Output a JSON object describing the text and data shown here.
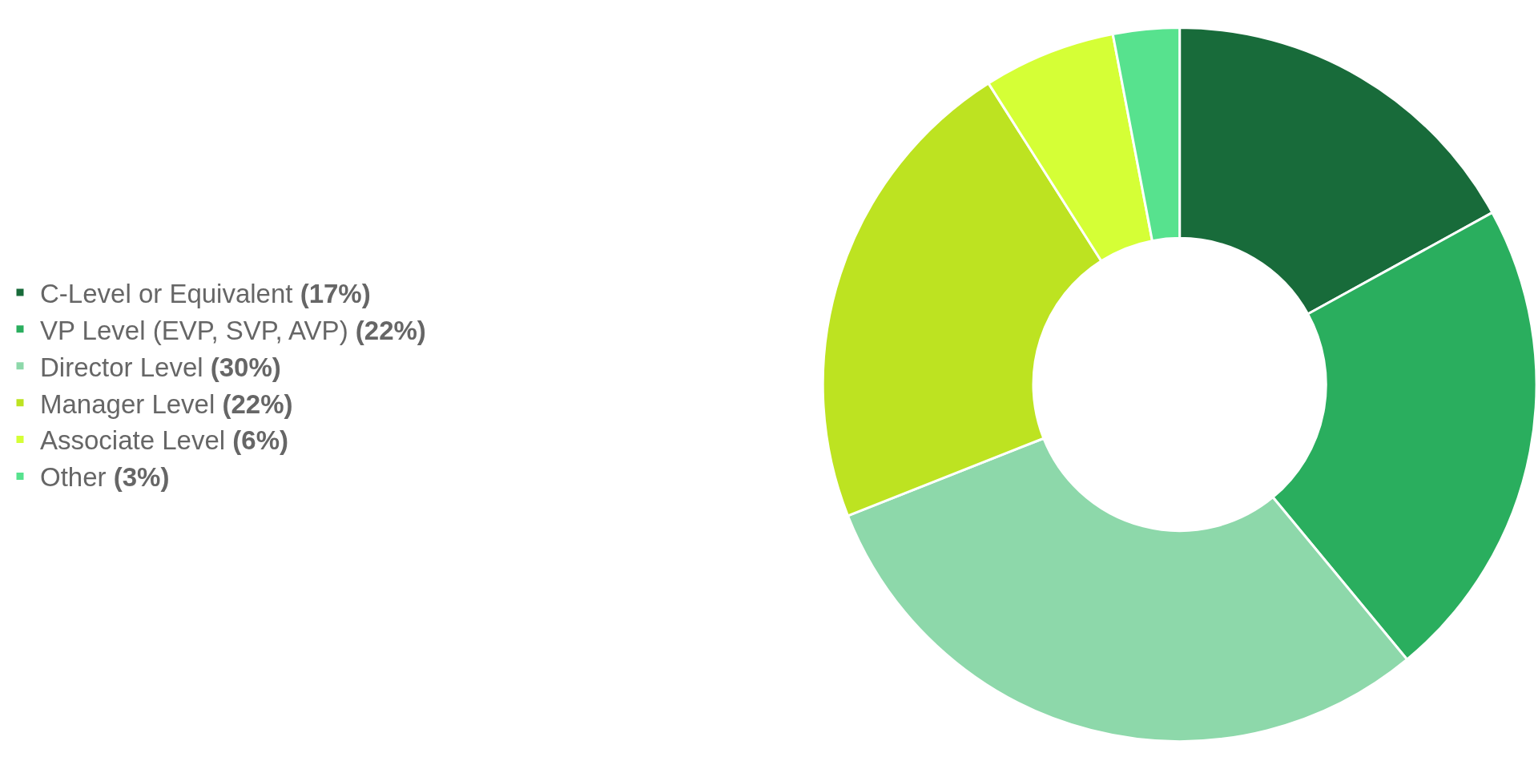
{
  "chart_data": {
    "type": "donut",
    "categories": [
      "C-Level or Equivalent",
      "VP Level (EVP, SVP, AVP)",
      "Director Level",
      "Manager Level",
      "Associate Level",
      "Other"
    ],
    "values": [
      17,
      22,
      30,
      22,
      6,
      3
    ],
    "value_labels": [
      "(17%)",
      "(22%)",
      "(30%)",
      "(22%)",
      "(6%)",
      "(3%)"
    ],
    "colors": [
      "#186b3a",
      "#2aae5e",
      "#8dd8aa",
      "#bde321",
      "#d5ff36",
      "#57e28e"
    ],
    "legend": "left"
  }
}
